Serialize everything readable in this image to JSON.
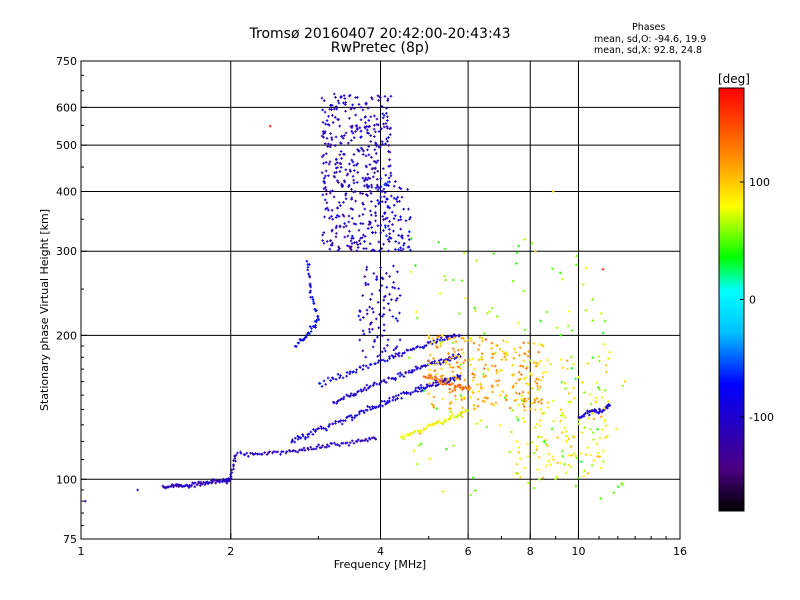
{
  "header": {
    "title": "Tromsø 20160407 20:42:00-20:43:43",
    "subtitle": "RwPretec (8p)"
  },
  "phase_box": {
    "title": "Phases",
    "line1": "mean, sd,O: -94.6, 19.9",
    "line2": "mean, sd,X:  92.8, 24.8"
  },
  "colorbar": {
    "label": "[deg]",
    "ticks": [
      100,
      0,
      -100
    ],
    "range": [
      -180,
      180
    ]
  },
  "chart_data": {
    "type": "scatter",
    "xlabel": "Frequency [MHz]",
    "ylabel": "Stationary phase Virtual Height [km]",
    "xscale": "log",
    "yscale": "log",
    "xlim": [
      1,
      16
    ],
    "ylim": [
      75,
      750
    ],
    "xticks": [
      1,
      2,
      4,
      6,
      8,
      10,
      16
    ],
    "yticks": [
      75,
      100,
      200,
      300,
      400,
      500,
      600,
      750
    ],
    "grid_x": [
      2,
      4,
      6,
      8,
      10
    ],
    "grid_y": [
      100,
      200,
      300,
      400,
      500,
      600
    ],
    "color_variable": "phase [deg]",
    "traces": [
      {
        "points": [
          [
            1.46,
            96
          ],
          [
            1.55,
            97
          ],
          [
            1.65,
            97
          ],
          [
            1.75,
            98
          ],
          [
            1.85,
            99
          ],
          [
            1.95,
            99
          ],
          [
            2.0,
            100
          ],
          [
            2.05,
            113
          ],
          [
            2.3,
            113
          ],
          [
            2.6,
            114
          ],
          [
            2.9,
            116
          ],
          [
            3.2,
            118
          ],
          [
            3.6,
            120
          ],
          [
            3.95,
            122
          ]
        ],
        "phase": -110,
        "spread": 0.015
      },
      {
        "points": [
          [
            2.65,
            120
          ],
          [
            2.85,
            124
          ],
          [
            3.1,
            128
          ],
          [
            3.4,
            133
          ],
          [
            3.7,
            138
          ],
          [
            4.0,
            143
          ],
          [
            4.3,
            148
          ],
          [
            4.7,
            153
          ],
          [
            5.0,
            157
          ],
          [
            5.3,
            160
          ],
          [
            5.6,
            162
          ],
          [
            5.8,
            164
          ]
        ],
        "phase": -95,
        "spread": 0.022
      },
      {
        "points": [
          [
            3.2,
            145
          ],
          [
            3.5,
            150
          ],
          [
            3.8,
            156
          ],
          [
            4.2,
            162
          ],
          [
            4.6,
            168
          ],
          [
            5.0,
            174
          ],
          [
            5.4,
            178
          ],
          [
            5.8,
            182
          ]
        ],
        "phase": -100,
        "spread": 0.02
      },
      {
        "points": [
          [
            3.0,
            158
          ],
          [
            3.4,
            166
          ],
          [
            3.8,
            174
          ],
          [
            4.3,
            182
          ],
          [
            4.8,
            190
          ],
          [
            5.3,
            196
          ],
          [
            5.8,
            200
          ]
        ],
        "phase": -90,
        "spread": 0.02
      },
      {
        "points": [
          [
            4.4,
            122
          ],
          [
            4.8,
            126
          ],
          [
            5.2,
            131
          ],
          [
            5.6,
            135
          ],
          [
            6.0,
            139
          ]
        ],
        "phase": 80,
        "spread": 0.02
      },
      {
        "points": [
          [
            4.9,
            165
          ],
          [
            5.3,
            160
          ],
          [
            5.7,
            157
          ],
          [
            6.1,
            155
          ]
        ],
        "phase": 140,
        "spread": 0.02
      },
      {
        "points": [
          [
            2.7,
            190
          ],
          [
            2.85,
            200
          ],
          [
            3.0,
            215
          ],
          [
            2.9,
            245
          ],
          [
            2.85,
            290
          ]
        ],
        "phase": -80,
        "spread": 0.02
      },
      {
        "points": [
          [
            10.0,
            135
          ],
          [
            10.6,
            138
          ],
          [
            11.2,
            140
          ],
          [
            11.6,
            143
          ]
        ],
        "phase": -95,
        "spread": 0.018
      }
    ],
    "clouds": [
      {
        "x": [
          3.05,
          4.2
        ],
        "y": [
          300,
          640
        ],
        "phase": -105,
        "n": 430
      },
      {
        "x": [
          3.9,
          4.6
        ],
        "y": [
          300,
          420
        ],
        "phase": -90,
        "n": 80
      },
      {
        "x": [
          3.6,
          4.4
        ],
        "y": [
          180,
          280
        ],
        "phase": -100,
        "n": 90
      },
      {
        "x": [
          5.0,
          8.5
        ],
        "y": [
          140,
          200
        ],
        "phase": 110,
        "n": 240
      },
      {
        "x": [
          7.5,
          11.5
        ],
        "y": [
          100,
          180
        ],
        "phase": 85,
        "n": 150
      },
      {
        "x": [
          4.5,
          12.5
        ],
        "y": [
          90,
          320
        ],
        "phase": 60,
        "n": 130
      }
    ],
    "isolated": [
      {
        "x": 2.4,
        "y": 548,
        "phase": 170
      },
      {
        "x": 11.2,
        "y": 275,
        "phase": 165
      },
      {
        "x": 8.2,
        "y": 300,
        "phase": 100
      },
      {
        "x": 8.9,
        "y": 400,
        "phase": 100
      },
      {
        "x": 1.02,
        "y": 90,
        "phase": -100
      },
      {
        "x": 1.3,
        "y": 95,
        "phase": -110
      }
    ]
  }
}
